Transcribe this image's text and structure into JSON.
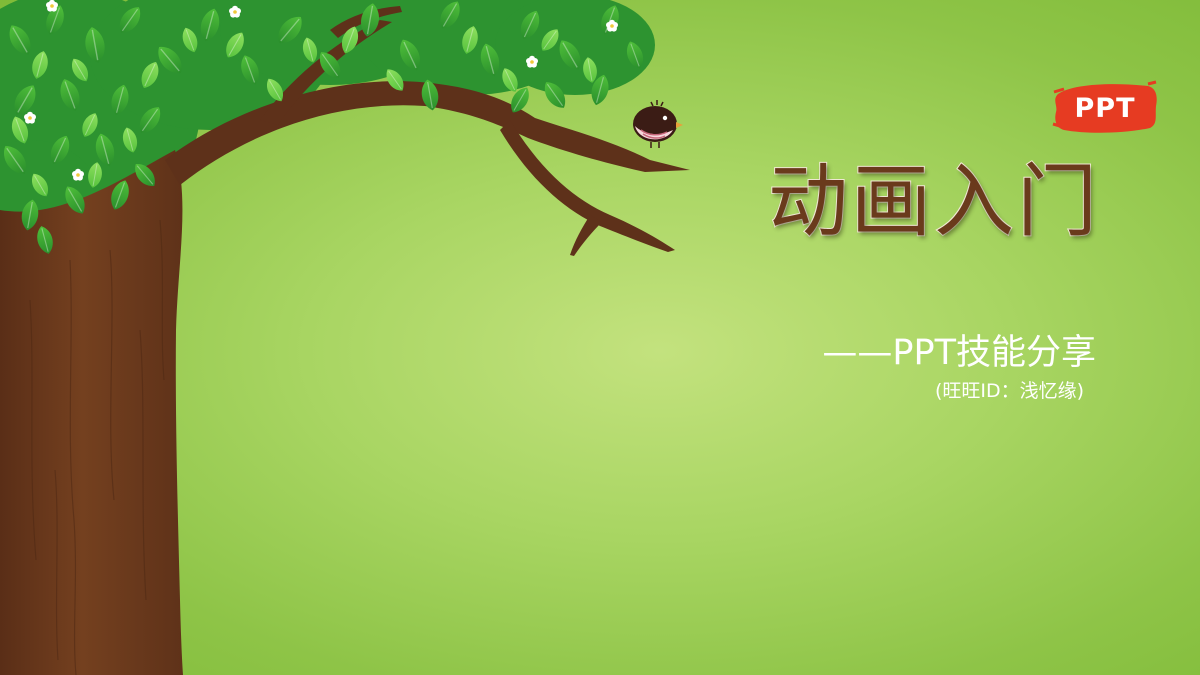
{
  "slide": {
    "title": "动画入门",
    "subtitle": "——PPT技能分享",
    "author": "(旺旺ID：浅忆缘)",
    "badge": "PPT"
  },
  "colors": {
    "background": "#a8d562",
    "title": "#6a3a1c",
    "title_outline": "#f4ecd8",
    "trunk": "#6e3a1e",
    "branch": "#5e311a",
    "leaf_dark": "#2f9a31",
    "leaf_light": "#6fcf4c",
    "badge": "#e63b22",
    "text_light": "#ffffff"
  },
  "icons": [
    "tree-illustration",
    "bird-icon",
    "ppt-logo-badge"
  ]
}
